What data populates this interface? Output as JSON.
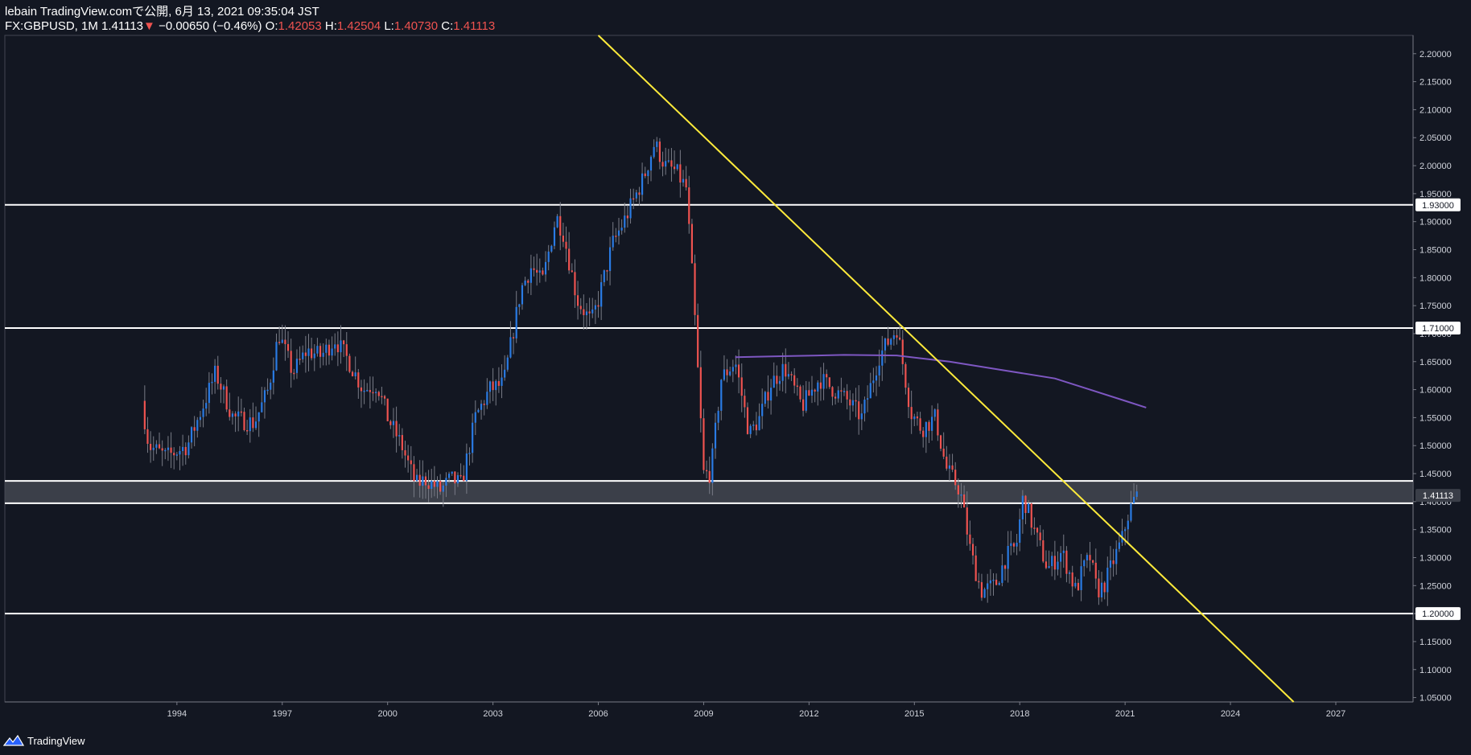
{
  "header": {
    "line1": "lebain TradingView.comで公開, 6月 13, 2021 09:35:04 JST",
    "symbol": "FX:GBPUSD, 1M",
    "last": "1.41113",
    "change": "−0.00650 (−0.46%)",
    "o_label": "O:",
    "o_value": "1.42053",
    "h_label": "H:",
    "h_value": "1.42504",
    "l_label": "L:",
    "l_value": "1.40730",
    "c_label": "C:",
    "c_value": "1.41113"
  },
  "footer": {
    "brand": "TradingView"
  },
  "chart_data": {
    "type": "candlestick",
    "title": "FX:GBPUSD, 1M",
    "x_ticks": [
      "1994",
      "1997",
      "2000",
      "2003",
      "2006",
      "2009",
      "2012",
      "2015",
      "2018",
      "2021",
      "2024",
      "2027"
    ],
    "y_ticks": [
      "1.05000",
      "1.10000",
      "1.15000",
      "1.20000",
      "1.25000",
      "1.30000",
      "1.35000",
      "1.40000",
      "1.45000",
      "1.50000",
      "1.55000",
      "1.60000",
      "1.65000",
      "1.70000",
      "1.75000",
      "1.80000",
      "1.85000",
      "1.90000",
      "1.95000",
      "2.00000",
      "2.05000",
      "2.10000",
      "2.15000",
      "2.20000"
    ],
    "xlim": [
      1989.1,
      2029.2
    ],
    "ylim": [
      1.0422,
      2.2327
    ],
    "horizontal_lines": [
      {
        "price": 1.93,
        "label": "1.93000"
      },
      {
        "price": 1.71,
        "label": "1.71000"
      },
      {
        "price": 1.2,
        "label": "1.20000"
      }
    ],
    "zone": {
      "from": 1.397,
      "to": 1.437
    },
    "current_price": {
      "price": 1.41113,
      "label": "1.41113"
    },
    "trendline": {
      "from": {
        "t": 2006.0,
        "p": 2.2327
      },
      "to": {
        "t": 2025.8,
        "p": 1.0422
      }
    },
    "moving_average": {
      "t": [
        2009.9,
        2011.5,
        2013.0,
        2014.5,
        2016.0,
        2017.5,
        2019.0,
        2020.0,
        2021.0,
        2021.6
      ],
      "p": [
        1.658,
        1.66,
        1.662,
        1.661,
        1.65,
        1.635,
        1.62,
        1.6,
        1.58,
        1.568
      ]
    },
    "price_path": {
      "t": [
        1993.0,
        1993.2,
        1993.7,
        1994.3,
        1994.8,
        1995.1,
        1995.6,
        1996.2,
        1996.6,
        1996.9,
        1997.3,
        1997.7,
        1998.1,
        1998.5,
        1998.9,
        1999.3,
        1999.7,
        2000.0,
        2000.4,
        2000.8,
        2001.1,
        2001.5,
        2001.8,
        2002.1,
        2002.5,
        2002.9,
        2003.3,
        2003.8,
        2004.1,
        2004.4,
        2004.8,
        2005.0,
        2005.4,
        2005.8,
        2006.0,
        2006.4,
        2006.8,
        2007.3,
        2007.6,
        2007.9,
        2008.2,
        2008.5,
        2008.7,
        2009.0,
        2009.2,
        2009.5,
        2009.9,
        2010.3,
        2010.6,
        2010.9,
        2011.3,
        2011.8,
        2012.3,
        2012.7,
        2013.1,
        2013.5,
        2014.0,
        2014.5,
        2014.9,
        2015.2,
        2015.6,
        2015.9,
        2016.3,
        2016.6,
        2016.9,
        2017.3,
        2017.6,
        2017.9,
        2018.1,
        2018.4,
        2018.8,
        2019.2,
        2019.6,
        2019.8,
        2020.0,
        2020.2,
        2020.4,
        2020.7,
        2020.9,
        2021.1,
        2021.3
      ],
      "p": [
        1.58,
        1.5,
        1.48,
        1.5,
        1.58,
        1.63,
        1.55,
        1.54,
        1.6,
        1.7,
        1.63,
        1.67,
        1.66,
        1.69,
        1.65,
        1.6,
        1.61,
        1.55,
        1.5,
        1.43,
        1.44,
        1.42,
        1.44,
        1.43,
        1.55,
        1.6,
        1.61,
        1.78,
        1.82,
        1.79,
        1.91,
        1.88,
        1.76,
        1.72,
        1.76,
        1.86,
        1.91,
        1.98,
        2.04,
        2.0,
        1.99,
        1.96,
        1.78,
        1.45,
        1.45,
        1.62,
        1.65,
        1.52,
        1.55,
        1.61,
        1.64,
        1.57,
        1.62,
        1.6,
        1.58,
        1.55,
        1.66,
        1.71,
        1.56,
        1.53,
        1.55,
        1.46,
        1.42,
        1.31,
        1.24,
        1.25,
        1.3,
        1.32,
        1.41,
        1.35,
        1.28,
        1.31,
        1.24,
        1.28,
        1.3,
        1.24,
        1.25,
        1.3,
        1.33,
        1.38,
        1.41
      ]
    }
  }
}
